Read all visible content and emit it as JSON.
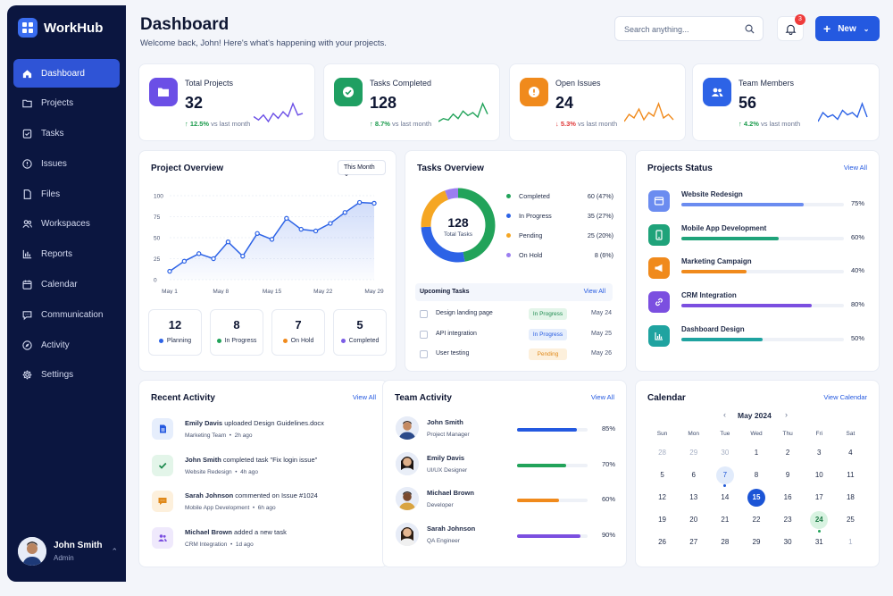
{
  "app": {
    "name": "WorkHub"
  },
  "nav": [
    {
      "label": "Dashboard",
      "icon": "home-icon",
      "active": true
    },
    {
      "label": "Projects",
      "icon": "folder-icon"
    },
    {
      "label": "Tasks",
      "icon": "task-check-icon"
    },
    {
      "label": "Issues",
      "icon": "alert-circle-icon"
    },
    {
      "label": "Files",
      "icon": "file-icon"
    },
    {
      "label": "Workspaces",
      "icon": "users-icon"
    },
    {
      "label": "Reports",
      "icon": "bar-chart-icon"
    },
    {
      "label": "Calendar",
      "icon": "calendar-icon"
    },
    {
      "label": "Communication",
      "icon": "chat-icon"
    },
    {
      "label": "Activity",
      "icon": "compass-icon"
    },
    {
      "label": "Settings",
      "icon": "gear-icon"
    }
  ],
  "user": {
    "name": "John Smith",
    "role": "Admin"
  },
  "header": {
    "title": "Dashboard",
    "subtitle": "Welcome back, John! Here's what's happening with your projects.",
    "search_placeholder": "Search anything...",
    "notification_count": "3",
    "new_label": "New"
  },
  "stats": [
    {
      "label": "Total Projects",
      "value": "32",
      "change": "↑ 12.5%",
      "note": "vs last month",
      "color": "#6b4fe6",
      "icon": "folder-icon",
      "trend": "up",
      "spark": [
        12,
        10,
        13,
        9,
        14,
        11,
        15,
        12,
        20,
        13,
        14
      ],
      "spark_color": "#6b4fe6"
    },
    {
      "label": "Tasks Completed",
      "value": "128",
      "change": "↑ 8.7%",
      "note": "vs last month",
      "color": "#1f9f62",
      "icon": "check-circle-icon",
      "trend": "up",
      "spark": [
        8,
        10,
        9,
        13,
        10,
        15,
        12,
        14,
        11,
        20,
        13
      ],
      "spark_color": "#22a35a"
    },
    {
      "label": "Open Issues",
      "value": "24",
      "change": "↓ 5.3%",
      "note": "vs last month",
      "color": "#f08a1c",
      "icon": "alert-icon",
      "trend": "down",
      "spark": [
        10,
        14,
        12,
        17,
        11,
        15,
        13,
        20,
        12,
        14,
        11
      ],
      "spark_color": "#f08a1c"
    },
    {
      "label": "Team Members",
      "value": "56",
      "change": "↑ 4.2%",
      "note": "vs last month",
      "color": "#2d63e6",
      "icon": "team-icon",
      "trend": "up",
      "spark": [
        10,
        14,
        12,
        13,
        11,
        15,
        13,
        14,
        12,
        18,
        12
      ],
      "spark_color": "#2d63e6"
    }
  ],
  "project_overview": {
    "title": "Project Overview",
    "period": "This Month",
    "boxes": [
      {
        "value": "12",
        "label": "Planning",
        "color": "#2d63e6"
      },
      {
        "value": "8",
        "label": "In Progress",
        "color": "#22a35a"
      },
      {
        "value": "7",
        "label": "On Hold",
        "color": "#f08a1c"
      },
      {
        "value": "5",
        "label": "Completed",
        "color": "#7b5ce6"
      }
    ]
  },
  "tasks_overview": {
    "title": "Tasks Overview",
    "total": "128",
    "total_label": "Total Tasks",
    "segments": [
      {
        "label": "Completed",
        "value": "60 (47%)",
        "pct": 47,
        "color": "#22a35a"
      },
      {
        "label": "In Progress",
        "value": "35 (27%)",
        "pct": 27,
        "color": "#2d63e6"
      },
      {
        "label": "Pending",
        "value": "25 (20%)",
        "pct": 20,
        "color": "#f5a623"
      },
      {
        "label": "On Hold",
        "value": "8 (6%)",
        "pct": 6,
        "color": "#9b7ef0"
      }
    ],
    "upcoming_title": "Upcoming Tasks",
    "upcoming_view_all": "View All",
    "upcoming": [
      {
        "name": "Design landing page",
        "status": "In Progress",
        "date": "May 24",
        "bg": "#e3f5e9",
        "fg": "#1d8a4e"
      },
      {
        "name": "API integration",
        "status": "In Progress",
        "date": "May 25",
        "bg": "#e6eefc",
        "fg": "#2459e0"
      },
      {
        "name": "User testing",
        "status": "Pending",
        "date": "May 26",
        "bg": "#fdf0dc",
        "fg": "#e0891a"
      }
    ]
  },
  "projects_status": {
    "title": "Projects Status",
    "view_all": "View All",
    "items": [
      {
        "name": "Website Redesign",
        "pct": "75%",
        "value": 75,
        "color": "#6b8cf0",
        "icon": "window-icon"
      },
      {
        "name": "Mobile App Development",
        "pct": "60%",
        "value": 60,
        "color": "#1fa37a",
        "icon": "phone-icon"
      },
      {
        "name": "Marketing Campaign",
        "pct": "40%",
        "value": 40,
        "color": "#f08a1c",
        "icon": "megaphone-icon"
      },
      {
        "name": "CRM Integration",
        "pct": "80%",
        "value": 80,
        "color": "#7b4fe0",
        "icon": "link-icon"
      },
      {
        "name": "Dashboard Design",
        "pct": "50%",
        "value": 50,
        "color": "#1fa3a0",
        "icon": "chart-icon"
      }
    ]
  },
  "recent_activity": {
    "title": "Recent Activity",
    "view_all": "View All",
    "items": [
      {
        "actor": "Emily Davis",
        "text": " uploaded Design Guidelines.docx",
        "context": "Marketing Team",
        "time": "2h ago",
        "bg": "#e6eefc",
        "fg": "#2459e0",
        "icon": "document-icon"
      },
      {
        "actor": "John Smith",
        "text": " completed task \"Fix login issue\"",
        "context": "Website Redesign",
        "time": "4h ago",
        "bg": "#e3f5e9",
        "fg": "#1d8a4e",
        "icon": "check-icon"
      },
      {
        "actor": "Sarah Johnson",
        "text": " commented on Issue #1024",
        "context": "Mobile App Development",
        "time": "6h ago",
        "bg": "#fdf0dc",
        "fg": "#e0891a",
        "icon": "comment-icon"
      },
      {
        "actor": "Michael Brown",
        "text": " added a new task",
        "context": "CRM Integration",
        "time": "1d ago",
        "bg": "#efe9fc",
        "fg": "#7b4fe0",
        "icon": "users-icon"
      }
    ]
  },
  "team_activity": {
    "title": "Team Activity",
    "view_all": "View All",
    "members": [
      {
        "name": "John Smith",
        "role": "Project Manager",
        "pct": "85%",
        "value": 85,
        "color": "#2459e0"
      },
      {
        "name": "Emily Davis",
        "role": "UI/UX Designer",
        "pct": "70%",
        "value": 70,
        "color": "#22a35a"
      },
      {
        "name": "Michael Brown",
        "role": "Developer",
        "pct": "60%",
        "value": 60,
        "color": "#f08a1c"
      },
      {
        "name": "Sarah Johnson",
        "role": "QA Engineer",
        "pct": "90%",
        "value": 90,
        "color": "#7b4fe0"
      }
    ]
  },
  "calendar": {
    "title": "Calendar",
    "view": "View Calendar",
    "month": "May 2024",
    "day_headers": [
      "Sun",
      "Mon",
      "Tue",
      "Wed",
      "Thu",
      "Fri",
      "Sat"
    ],
    "days": [
      {
        "d": "28",
        "s": "muted"
      },
      {
        "d": "29",
        "s": "muted"
      },
      {
        "d": "30",
        "s": "muted"
      },
      {
        "d": "1"
      },
      {
        "d": "2"
      },
      {
        "d": "3"
      },
      {
        "d": "4"
      },
      {
        "d": "5"
      },
      {
        "d": "6"
      },
      {
        "d": "7",
        "s": "ev1"
      },
      {
        "d": "8"
      },
      {
        "d": "9"
      },
      {
        "d": "10"
      },
      {
        "d": "11"
      },
      {
        "d": "12"
      },
      {
        "d": "13"
      },
      {
        "d": "14"
      },
      {
        "d": "15",
        "s": "today"
      },
      {
        "d": "16"
      },
      {
        "d": "17"
      },
      {
        "d": "18"
      },
      {
        "d": "19"
      },
      {
        "d": "20"
      },
      {
        "d": "21"
      },
      {
        "d": "22"
      },
      {
        "d": "23"
      },
      {
        "d": "24",
        "s": "ev2"
      },
      {
        "d": "25"
      },
      {
        "d": "26"
      },
      {
        "d": "27"
      },
      {
        "d": "28"
      },
      {
        "d": "29"
      },
      {
        "d": "30"
      },
      {
        "d": "31"
      },
      {
        "d": "1",
        "s": "muted"
      }
    ]
  },
  "chart_data": {
    "type": "area",
    "title": "Project Overview",
    "categories": [
      "May 1",
      "May 8",
      "May 15",
      "May 22",
      "May 29"
    ],
    "x": [
      1,
      3,
      5,
      7,
      9,
      11,
      13,
      15,
      17,
      19,
      21,
      23,
      25,
      27,
      29
    ],
    "y_ticks": [
      "0",
      "25",
      "50",
      "75",
      "100"
    ],
    "ylim": [
      0,
      100
    ],
    "values": [
      10,
      22,
      31,
      25,
      45,
      28,
      55,
      48,
      73,
      60,
      58,
      67,
      80,
      92,
      91
    ],
    "color": "#2d63e6",
    "grid": true
  }
}
